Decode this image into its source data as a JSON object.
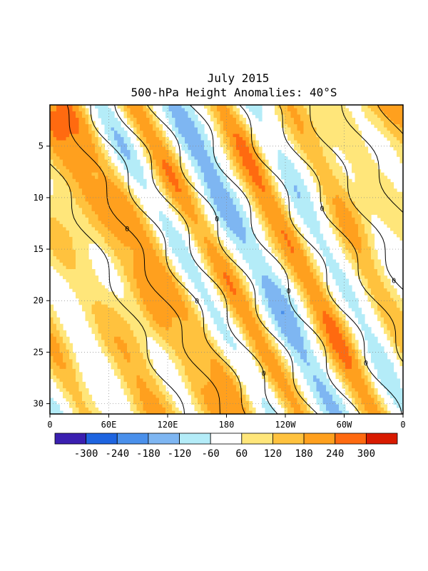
{
  "chart_data": {
    "type": "heatmap",
    "title_line1": "July 2015",
    "title_line2": "500-hPa Height Anomalies: 40°S",
    "x_ticks": [
      "0",
      "60E",
      "120E",
      "180",
      "120W",
      "60W",
      "0"
    ],
    "y_ticks": [
      "5",
      "10",
      "15",
      "20",
      "25",
      "30"
    ],
    "y_tick_values": [
      5,
      10,
      15,
      20,
      25,
      30
    ],
    "ylim": [
      1,
      31
    ],
    "xlim": [
      0,
      360
    ],
    "contour_label": "0",
    "colorbar": {
      "labels": [
        "-300",
        "-240",
        "-180",
        "-120",
        "-60",
        "60",
        "120",
        "180",
        "240",
        "300"
      ],
      "levels": [
        -300,
        -240,
        -180,
        -120,
        -60,
        60,
        120,
        180,
        240,
        300
      ],
      "colors": [
        "#3a1fb0",
        "#1e64e0",
        "#4a90eb",
        "#7eb6f2",
        "#b4ecf8",
        "#ffffff",
        "#ffe67a",
        "#ffc23e",
        "#ffa01e",
        "#ff6a10",
        "#d81a00"
      ]
    },
    "bands": [
      {
        "value": 200,
        "x_at_day1": 20,
        "slope": 6.0
      },
      {
        "value": -130,
        "x_at_day1": 50,
        "slope": 5.8
      },
      {
        "value": 230,
        "x_at_day1": 85,
        "slope": 5.6
      },
      {
        "value": -150,
        "x_at_day1": 125,
        "slope": 5.5
      },
      {
        "value": 250,
        "x_at_day1": 175,
        "slope": 5.2
      },
      {
        "value": -110,
        "x_at_day1": 205,
        "slope": 5.3
      },
      {
        "value": 180,
        "x_at_day1": 245,
        "slope": 5.0
      },
      {
        "value": -80,
        "x_at_day1": 285,
        "slope": 5.2
      },
      {
        "value": 210,
        "x_at_day1": 325,
        "slope": 5.4
      },
      {
        "value": 180,
        "x_at_day1": -10,
        "slope": 5.8
      },
      {
        "value": -170,
        "x_at_day1": -40,
        "slope": 6.0
      },
      {
        "value": 170,
        "x_at_day1": -75,
        "slope": 5.8
      }
    ]
  }
}
